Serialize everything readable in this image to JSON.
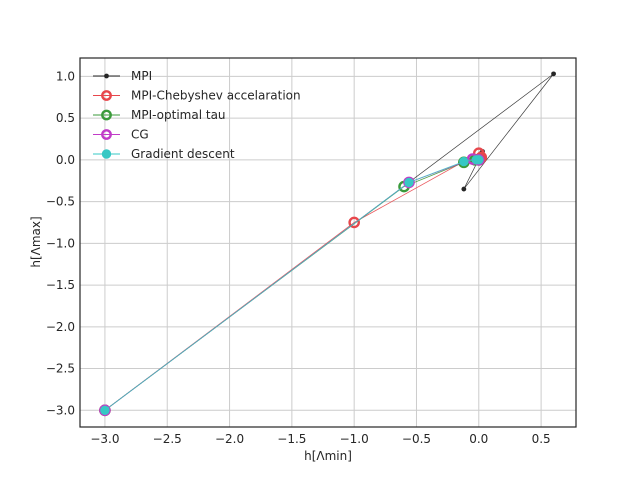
{
  "chart_data": {
    "type": "line",
    "title": "",
    "xlabel": "h[Λmin]",
    "ylabel": "h[Λmax]",
    "xlim": [
      -3.2,
      0.78
    ],
    "ylim": [
      -3.2,
      1.22
    ],
    "xticks": [
      -3.0,
      -2.5,
      -2.0,
      -1.5,
      -1.0,
      -0.5,
      0.0,
      0.5
    ],
    "xtick_labels": [
      "−3.0",
      "−2.5",
      "−2.0",
      "−1.5",
      "−1.0",
      "−0.5",
      "0.0",
      "0.5"
    ],
    "yticks": [
      1.0,
      0.5,
      0.0,
      -0.5,
      -1.0,
      -1.5,
      -2.0,
      -2.5,
      -3.0
    ],
    "ytick_labels": [
      "1.0",
      "0.5",
      "0.0",
      "−0.5",
      "−1.0",
      "−1.5",
      "−2.0",
      "−2.5",
      "−3.0"
    ],
    "grid": true,
    "legend_position": "top-left",
    "series": [
      {
        "name": "MPI",
        "color": "#262626",
        "marker": "dot",
        "x": [
          -3.0,
          0.6,
          -0.12,
          0.03,
          0.0,
          0.02,
          0.01,
          0.0
        ],
        "y": [
          -3.0,
          1.03,
          -0.35,
          0.1,
          0.0,
          0.08,
          0.02,
          0.0
        ]
      },
      {
        "name": "MPI-Chebyshev accelaration",
        "color": "#e8474c",
        "marker": "ring",
        "x": [
          -3.0,
          -1.0,
          0.0,
          0.02,
          0.01,
          0.0
        ],
        "y": [
          -3.0,
          -0.75,
          0.08,
          0.03,
          0.01,
          0.0
        ]
      },
      {
        "name": "MPI-optimal tau",
        "color": "#3a9a3a",
        "marker": "ring",
        "x": [
          -3.0,
          -0.6,
          -0.12,
          -0.03,
          0.0
        ],
        "y": [
          -3.0,
          -0.32,
          -0.03,
          0.0,
          0.0
        ]
      },
      {
        "name": "CG",
        "color": "#c13cc8",
        "marker": "ring",
        "x": [
          -3.0,
          -0.56,
          -0.05,
          0.0
        ],
        "y": [
          -3.0,
          -0.27,
          0.01,
          0.0
        ]
      },
      {
        "name": "Gradient descent",
        "color": "#36c8c4",
        "marker": "disc",
        "x": [
          -3.0,
          -0.56,
          -0.12,
          -0.02,
          0.0
        ],
        "y": [
          -3.0,
          -0.27,
          -0.02,
          0.0,
          0.0
        ]
      }
    ]
  }
}
